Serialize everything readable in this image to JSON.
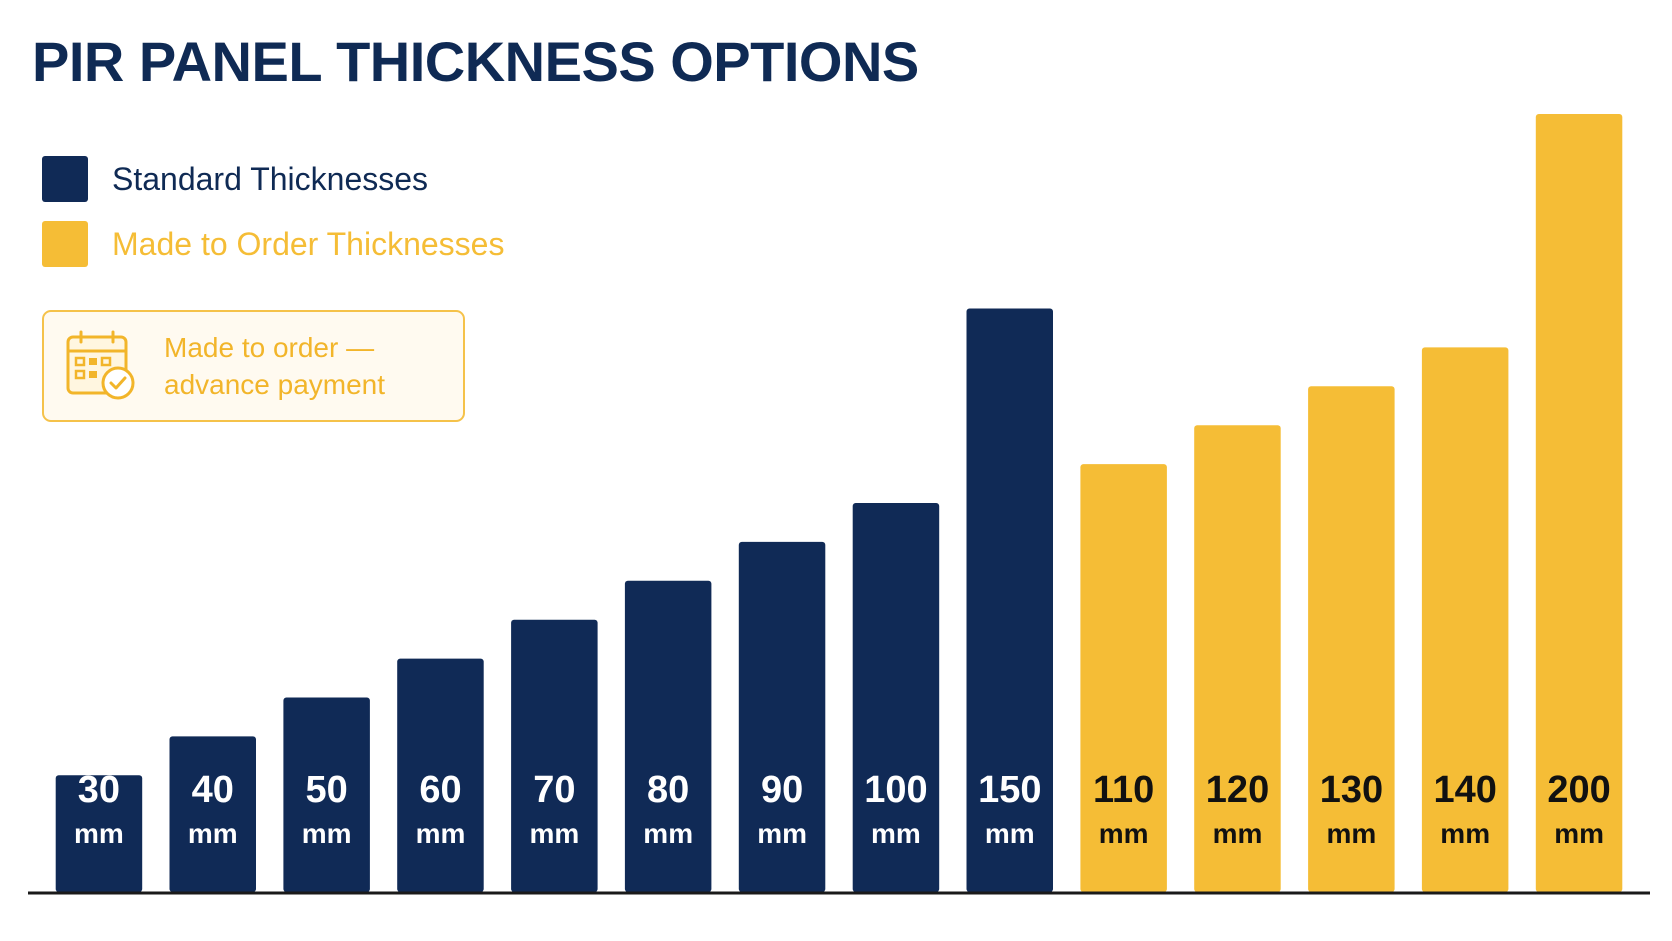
{
  "colors": {
    "standard": "#102a56",
    "made_to_order": "#f5bd36",
    "title": "#0f2a54",
    "standard_label_text": "#ffffff",
    "order_label_text": "#111111",
    "axis": "#1a1a1a"
  },
  "legend": {
    "items": [
      {
        "label": "Standard Thicknesses",
        "color": "#102a56"
      },
      {
        "label": "Made to Order Thicknesses",
        "color": "#f5bd36"
      }
    ]
  },
  "notice": {
    "icon": "calendar-check-icon",
    "text": "Made to order —\nadvance payment"
  },
  "chart_data": {
    "type": "bar",
    "title": "PIR PANEL THICKNESS OPTIONS",
    "xlabel": "",
    "ylabel": "",
    "unit": "mm",
    "ylim": [
      0,
      200
    ],
    "grid": false,
    "legend_position": "top-left",
    "categories": [
      "30",
      "40",
      "50",
      "60",
      "70",
      "80",
      "90",
      "100",
      "150",
      "110",
      "120",
      "130",
      "140",
      "200"
    ],
    "values": [
      30,
      40,
      50,
      60,
      70,
      80,
      90,
      100,
      150,
      110,
      120,
      130,
      140,
      200
    ],
    "groups": [
      "standard",
      "standard",
      "standard",
      "standard",
      "standard",
      "standard",
      "standard",
      "standard",
      "standard",
      "made_to_order",
      "made_to_order",
      "made_to_order",
      "made_to_order",
      "made_to_order"
    ]
  }
}
